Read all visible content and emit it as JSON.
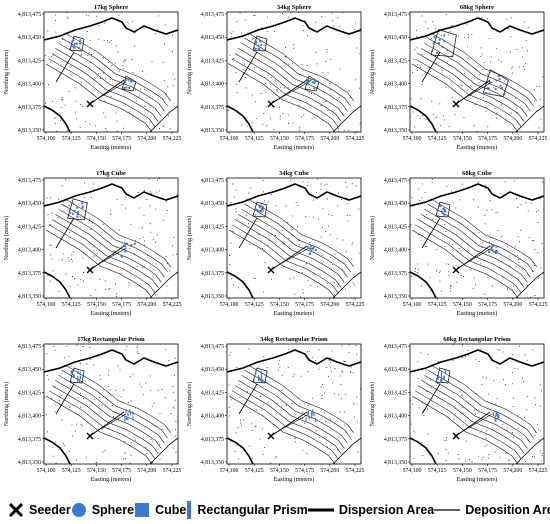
{
  "axis": {
    "ylabel": "Northing (meters)",
    "xlabel": "Easting (meters)",
    "yticks": [
      "4,813,475",
      "4,813,450",
      "4,813,425",
      "4,813,400",
      "4,813,375",
      "4,813,350"
    ],
    "xticks": [
      "574,100",
      "574,125",
      "574,150",
      "574,175",
      "574,200",
      "574,225"
    ]
  },
  "panels": [
    {
      "title": "17kg Sphere",
      "marker": "sphere"
    },
    {
      "title": "34kg Sphere",
      "marker": "sphere"
    },
    {
      "title": "68kg Sphere",
      "marker": "sphere"
    },
    {
      "title": "17kg Cube",
      "marker": "cube"
    },
    {
      "title": "34kg Cube",
      "marker": "cube"
    },
    {
      "title": "68kg Cube",
      "marker": "cube"
    },
    {
      "title": "17kg Rectangular Prism",
      "marker": "prism"
    },
    {
      "title": "34kg Rectangular Prism",
      "marker": "prism"
    },
    {
      "title": "68kg Rectangular Prism",
      "marker": "prism"
    }
  ],
  "legend": {
    "seeder": "Seeder",
    "sphere": "Sphere",
    "cube": "Cube",
    "prism": "Rectangular Prism",
    "dispersion": "Dispersion Area",
    "deposition": "Deposition Area"
  },
  "colors": {
    "marker": "#3a78d4",
    "line": "#000000",
    "background": "#ffffff"
  }
}
